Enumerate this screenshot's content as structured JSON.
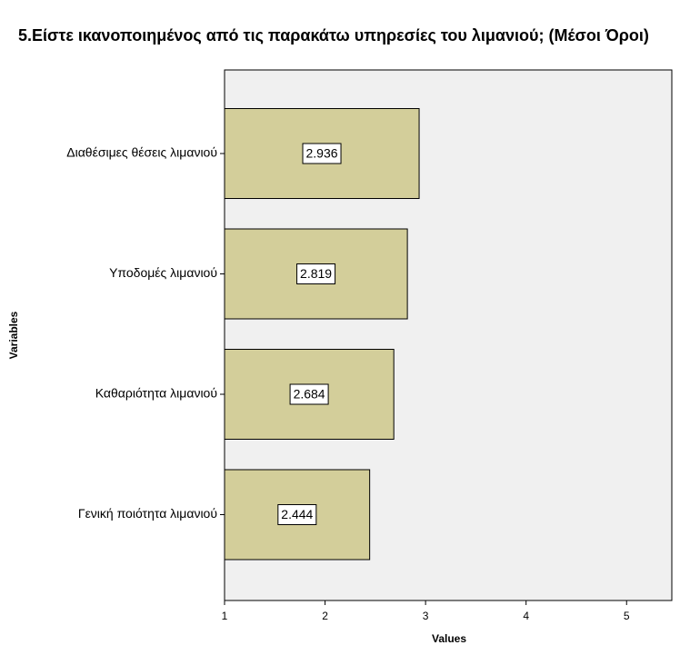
{
  "chart_data": {
    "type": "barh",
    "title": "5.Είστε ικανοποιημένος από τις παρακάτω υπηρεσίες του λιμανιού; (Μέσοι Όροι)",
    "xlabel": "Values",
    "ylabel": "Variables",
    "categories": [
      "Διαθέσιμες θέσεις λιμανιού",
      "Υποδομές λιμανιού",
      "Καθαριότητα λιμανιού",
      "Γενική ποιότητα λιμανιού"
    ],
    "values": [
      2.936,
      2.819,
      2.684,
      2.444
    ],
    "color": "#d3ce9a",
    "xlim": [
      1,
      5.45
    ],
    "xticks": [
      1,
      2,
      3,
      4,
      5
    ]
  }
}
